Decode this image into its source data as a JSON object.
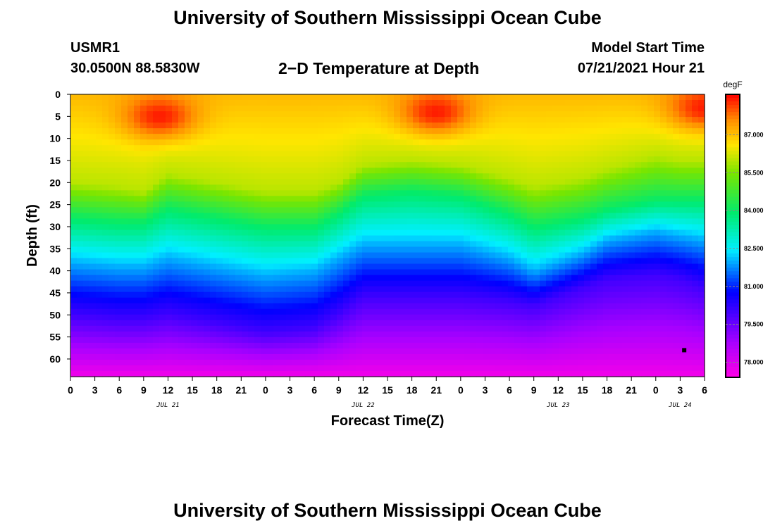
{
  "header": {
    "title_top": "University of Southern Mississippi Ocean Cube",
    "title_bottom": "University of Southern Mississippi Ocean Cube",
    "station_id": "USMR1",
    "station_coords": "30.0500N  88.5830W",
    "chart_title": "2−D Temperature at Depth",
    "model_start_label": "Model Start Time",
    "model_start_value": "07/21/2021 Hour 21"
  },
  "chart_data": {
    "type": "heatmap",
    "title": "2−D Temperature at Depth",
    "xlabel": "Forecast Time(Z)",
    "ylabel": "Depth (ft)",
    "x_unit": "forecast hours",
    "xlim": [
      0,
      78
    ],
    "x_ticks": [
      0,
      3,
      6,
      9,
      12,
      15,
      18,
      21,
      24,
      27,
      30,
      33,
      36,
      39,
      42,
      45,
      48,
      51,
      54,
      57,
      60,
      63,
      66,
      69,
      72,
      75,
      78
    ],
    "x_tick_labels": [
      "0",
      "3",
      "6",
      "9",
      "12",
      "15",
      "18",
      "21",
      "0",
      "3",
      "6",
      "9",
      "12",
      "15",
      "18",
      "21",
      "0",
      "3",
      "6",
      "9",
      "12",
      "15",
      "18",
      "21",
      "0",
      "3",
      "6"
    ],
    "date_labels": [
      {
        "x": 12,
        "label": "JUL 21"
      },
      {
        "x": 36,
        "label": "JUL 22"
      },
      {
        "x": 60,
        "label": "JUL 23"
      },
      {
        "x": 75,
        "label": "JUL 24"
      }
    ],
    "ylim": [
      0,
      64
    ],
    "y_ticks": [
      0,
      5,
      10,
      15,
      20,
      25,
      30,
      35,
      40,
      45,
      50,
      55,
      60
    ],
    "y_tick_labels": [
      "0",
      "5",
      "10",
      "15",
      "20",
      "25",
      "30",
      "35",
      "40",
      "45",
      "50",
      "55",
      "60"
    ],
    "colorbar": {
      "unit": "degF",
      "min": 77.4,
      "max": 88.6,
      "tick_values": [
        78.0,
        79.5,
        81.0,
        82.5,
        84.0,
        85.5,
        87.0
      ],
      "tick_labels": [
        "78.000",
        "79.500",
        "81.000",
        "82.500",
        "84.000",
        "85.500",
        "87.000"
      ]
    },
    "surface_temp_degF": 87.1,
    "bottom_temp_degF": 77.6,
    "isotherm_depths": {
      "x_hours": [
        0,
        6,
        9,
        12,
        18,
        24,
        30,
        33,
        36,
        42,
        48,
        54,
        57,
        60,
        63,
        66,
        72,
        75,
        78
      ],
      "t86_ft": [
        20,
        21,
        22,
        18,
        20,
        22,
        22,
        20,
        16,
        15,
        16,
        19,
        21,
        20,
        19,
        17,
        14,
        15,
        15
      ],
      "t84_ft": [
        28,
        29,
        29,
        26,
        28,
        30,
        30,
        27,
        23,
        22,
        23,
        27,
        30,
        29,
        28,
        26,
        24,
        24,
        24
      ],
      "t82_ft": [
        38,
        39,
        39,
        37,
        39,
        41,
        40,
        37,
        34,
        34,
        34,
        37,
        40,
        38,
        36,
        33,
        31,
        32,
        33
      ],
      "t80_ft": [
        50,
        51,
        51,
        50,
        52,
        54,
        53,
        50,
        46,
        46,
        46,
        47,
        48,
        46,
        44,
        42,
        41,
        42,
        44
      ]
    },
    "warm_cores": [
      {
        "x": 11,
        "depth": 5,
        "temp_degF": 88.4
      },
      {
        "x": 45,
        "depth": 4,
        "temp_degF": 88.4
      },
      {
        "x": 78,
        "depth": 3,
        "temp_degF": 88.4
      }
    ],
    "marker": {
      "x": 75.5,
      "depth": 58
    }
  }
}
